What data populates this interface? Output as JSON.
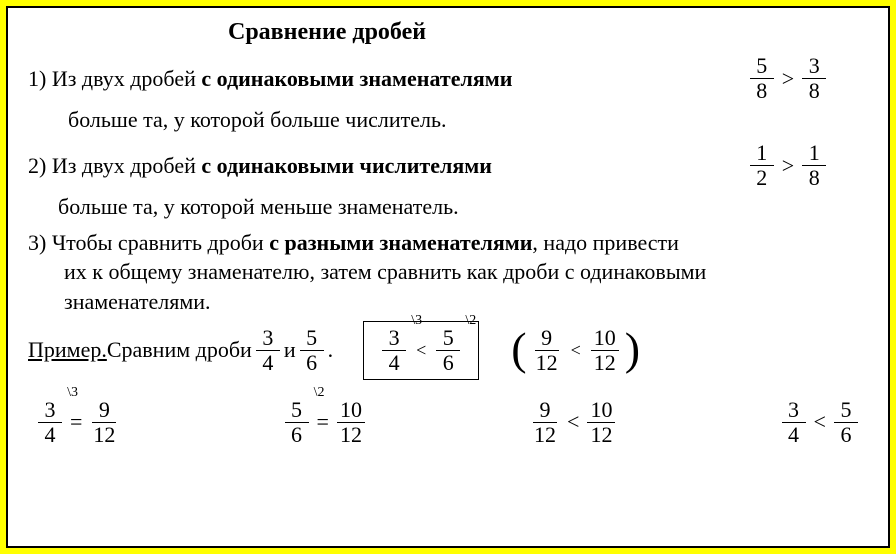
{
  "colors": {
    "page_bg": "#ffff00",
    "card_bg": "#ffffff",
    "border": "#000000",
    "text": "#000000"
  },
  "title": "Сравнение дробей",
  "rule1": {
    "line1_a": "1) Из двух дробей ",
    "line1_b": "с одинаковыми знаменателями",
    "line2": "больше та, у которой больше числитель.",
    "frac1": {
      "num": "5",
      "den": "8"
    },
    "op": ">",
    "frac2": {
      "num": "3",
      "den": "8"
    }
  },
  "rule2": {
    "line1_a": "2) Из двух дробей ",
    "line1_b": "с одинаковыми числителями",
    "line2": "больше та, у которой меньше знаменатель.",
    "frac1": {
      "num": "1",
      "den": "2"
    },
    "op": ">",
    "frac2": {
      "num": "1",
      "den": "8"
    }
  },
  "rule3": {
    "line1_a": "3)  Чтобы сравнить дроби ",
    "line1_b": "с разными знаменателями",
    "line1_c": ", надо привести",
    "line2": "их к общему знаменателю, затем сравнить как дроби с одинаковыми",
    "line3": "знаменателями."
  },
  "example": {
    "label": "Пример.",
    "text_a": " Сравним дроби ",
    "fracA": {
      "num": "3",
      "den": "4"
    },
    "and": " и ",
    "fracB": {
      "num": "5",
      "den": "6"
    },
    "dot": " .",
    "boxed": {
      "fracA": {
        "num": "3",
        "den": "4",
        "ann": "\\3"
      },
      "op": "<",
      "fracB": {
        "num": "5",
        "den": "6",
        "ann": "\\2"
      }
    },
    "paren": {
      "fracA": {
        "num": "9",
        "den": "12"
      },
      "op": "<",
      "fracB": {
        "num": "10",
        "den": "12"
      }
    }
  },
  "work": {
    "step1": {
      "fracA": {
        "num": "3",
        "den": "4",
        "ann": "\\3"
      },
      "eq": "=",
      "fracR": {
        "num": "9",
        "den": "12"
      }
    },
    "step2": {
      "fracA": {
        "num": "5",
        "den": "6",
        "ann": "\\2"
      },
      "eq": "=",
      "fracR": {
        "num": "10",
        "den": "12"
      }
    },
    "cmp1": {
      "fracA": {
        "num": "9",
        "den": "12"
      },
      "op": "<",
      "fracB": {
        "num": "10",
        "den": "12"
      }
    },
    "cmp2": {
      "fracA": {
        "num": "3",
        "den": "4"
      },
      "op": "<",
      "fracB": {
        "num": "5",
        "den": "6"
      }
    }
  }
}
